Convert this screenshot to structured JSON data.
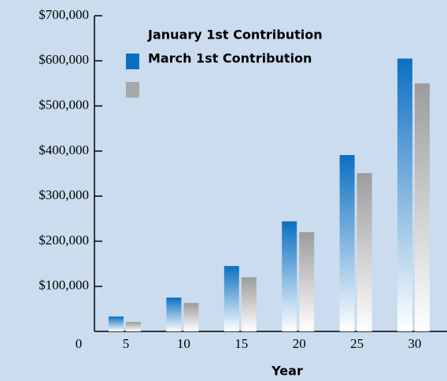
{
  "chart_data": {
    "type": "bar",
    "x_label": "Year",
    "categories": [
      "5",
      "10",
      "15",
      "20",
      "25",
      "30"
    ],
    "series": [
      {
        "name": "January 1st Contribution",
        "color": "#0b6fc2",
        "values": [
          33000,
          75000,
          145000,
          244000,
          391000,
          605000
        ]
      },
      {
        "name": "March 1st Contribution",
        "color": "#9c9c9c",
        "values": [
          21000,
          63000,
          120000,
          220000,
          351000,
          550000
        ]
      }
    ],
    "ylim": [
      0,
      700000
    ],
    "yticks": [
      0,
      {
        "value": 100000,
        "label": "$100,000"
      },
      {
        "value": 200000,
        "label": "$200,000"
      },
      {
        "value": 300000,
        "label": "$300,000"
      },
      {
        "value": 400000,
        "label": "$400,000"
      },
      {
        "value": 500000,
        "label": "$500,000"
      },
      {
        "value": 600000,
        "label": "$600,000"
      },
      {
        "value": 700000,
        "label": "$700,000"
      }
    ],
    "grid": false
  }
}
